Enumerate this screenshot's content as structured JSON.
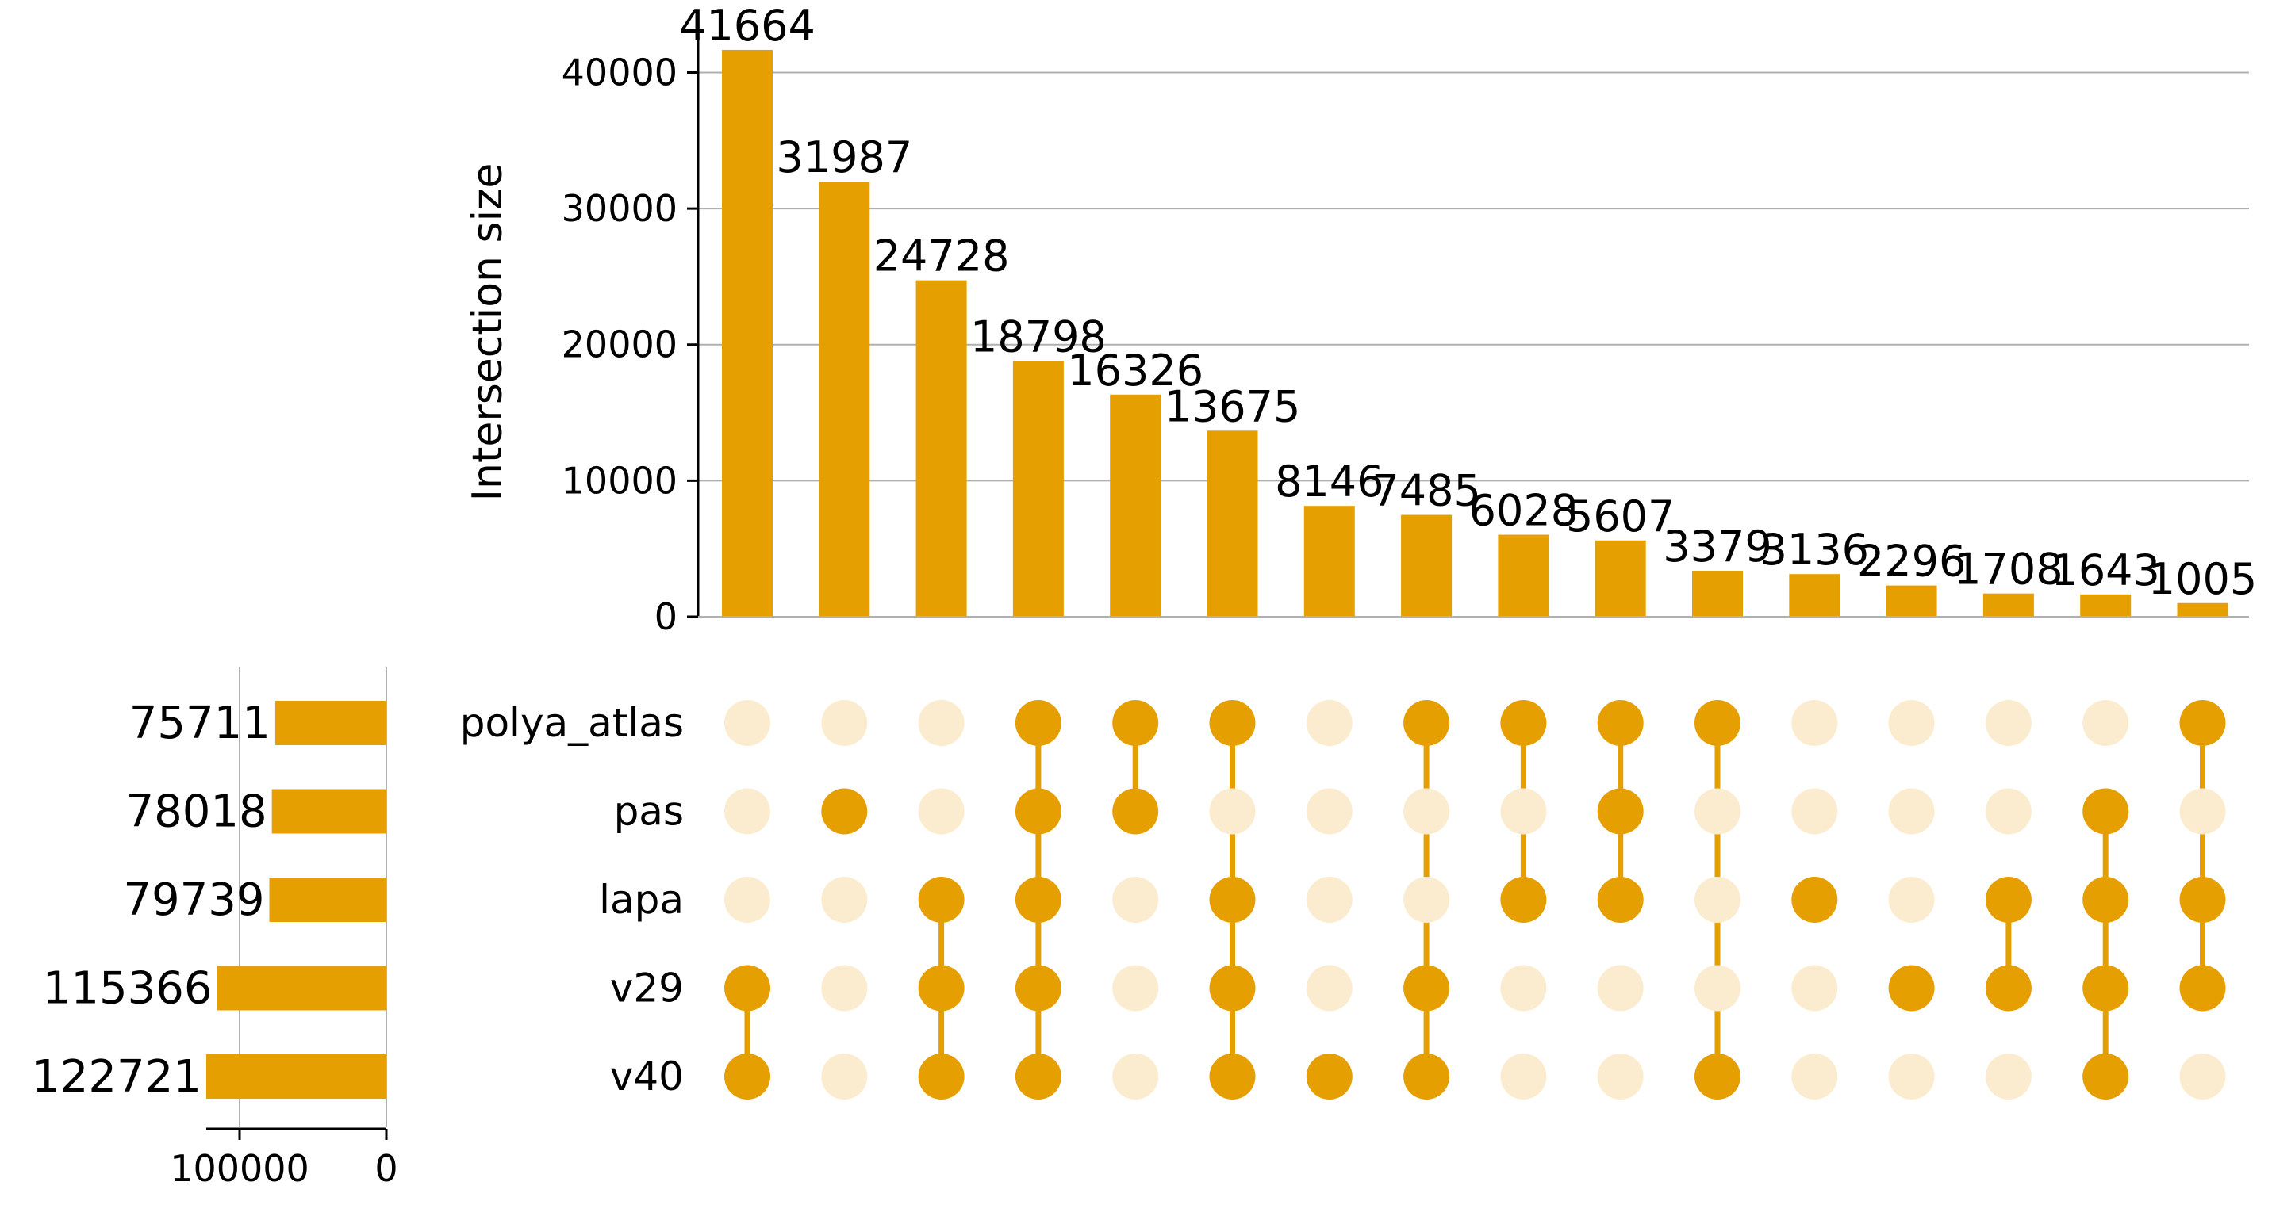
{
  "chart_data": {
    "type": "bar",
    "subtype": "upset",
    "ylabel": "Intersection size",
    "ylim": [
      0,
      43000
    ],
    "yticks": [
      0,
      10000,
      20000,
      30000,
      40000
    ],
    "grid": true,
    "sets": [
      "polya_atlas",
      "pas",
      "lapa",
      "v29",
      "v40"
    ],
    "set_sizes": [
      75711,
      78018,
      79739,
      115366,
      122721
    ],
    "set_size_xlim": [
      0,
      122721
    ],
    "set_size_ticks": [
      100000,
      0
    ],
    "intersections": [
      {
        "value": 41664,
        "members": [
          "v29",
          "v40"
        ]
      },
      {
        "value": 31987,
        "members": [
          "pas"
        ]
      },
      {
        "value": 24728,
        "members": [
          "lapa",
          "v29",
          "v40"
        ]
      },
      {
        "value": 18798,
        "members": [
          "polya_atlas",
          "pas",
          "lapa",
          "v29",
          "v40"
        ]
      },
      {
        "value": 16326,
        "members": [
          "polya_atlas",
          "pas"
        ]
      },
      {
        "value": 13675,
        "members": [
          "polya_atlas",
          "lapa",
          "v29",
          "v40"
        ]
      },
      {
        "value": 8146,
        "members": [
          "v40"
        ]
      },
      {
        "value": 7485,
        "members": [
          "polya_atlas",
          "v29",
          "v40"
        ]
      },
      {
        "value": 6028,
        "members": [
          "polya_atlas",
          "lapa"
        ]
      },
      {
        "value": 5607,
        "members": [
          "polya_atlas",
          "pas",
          "lapa"
        ]
      },
      {
        "value": 3379,
        "members": [
          "polya_atlas",
          "v40"
        ]
      },
      {
        "value": 3136,
        "members": [
          "lapa"
        ]
      },
      {
        "value": 2296,
        "members": [
          "v29"
        ]
      },
      {
        "value": 1708,
        "members": [
          "lapa",
          "v29"
        ]
      },
      {
        "value": 1643,
        "members": [
          "pas",
          "lapa",
          "v29",
          "v40"
        ]
      },
      {
        "value": 1005,
        "members": [
          "polya_atlas",
          "lapa",
          "v29"
        ]
      }
    ],
    "colors": {
      "bar": "#e69f00",
      "dot_active": "#e69f00",
      "dot_inactive": "#fbecd0",
      "grid": "#b0b0b0",
      "axis": "#000000"
    }
  }
}
